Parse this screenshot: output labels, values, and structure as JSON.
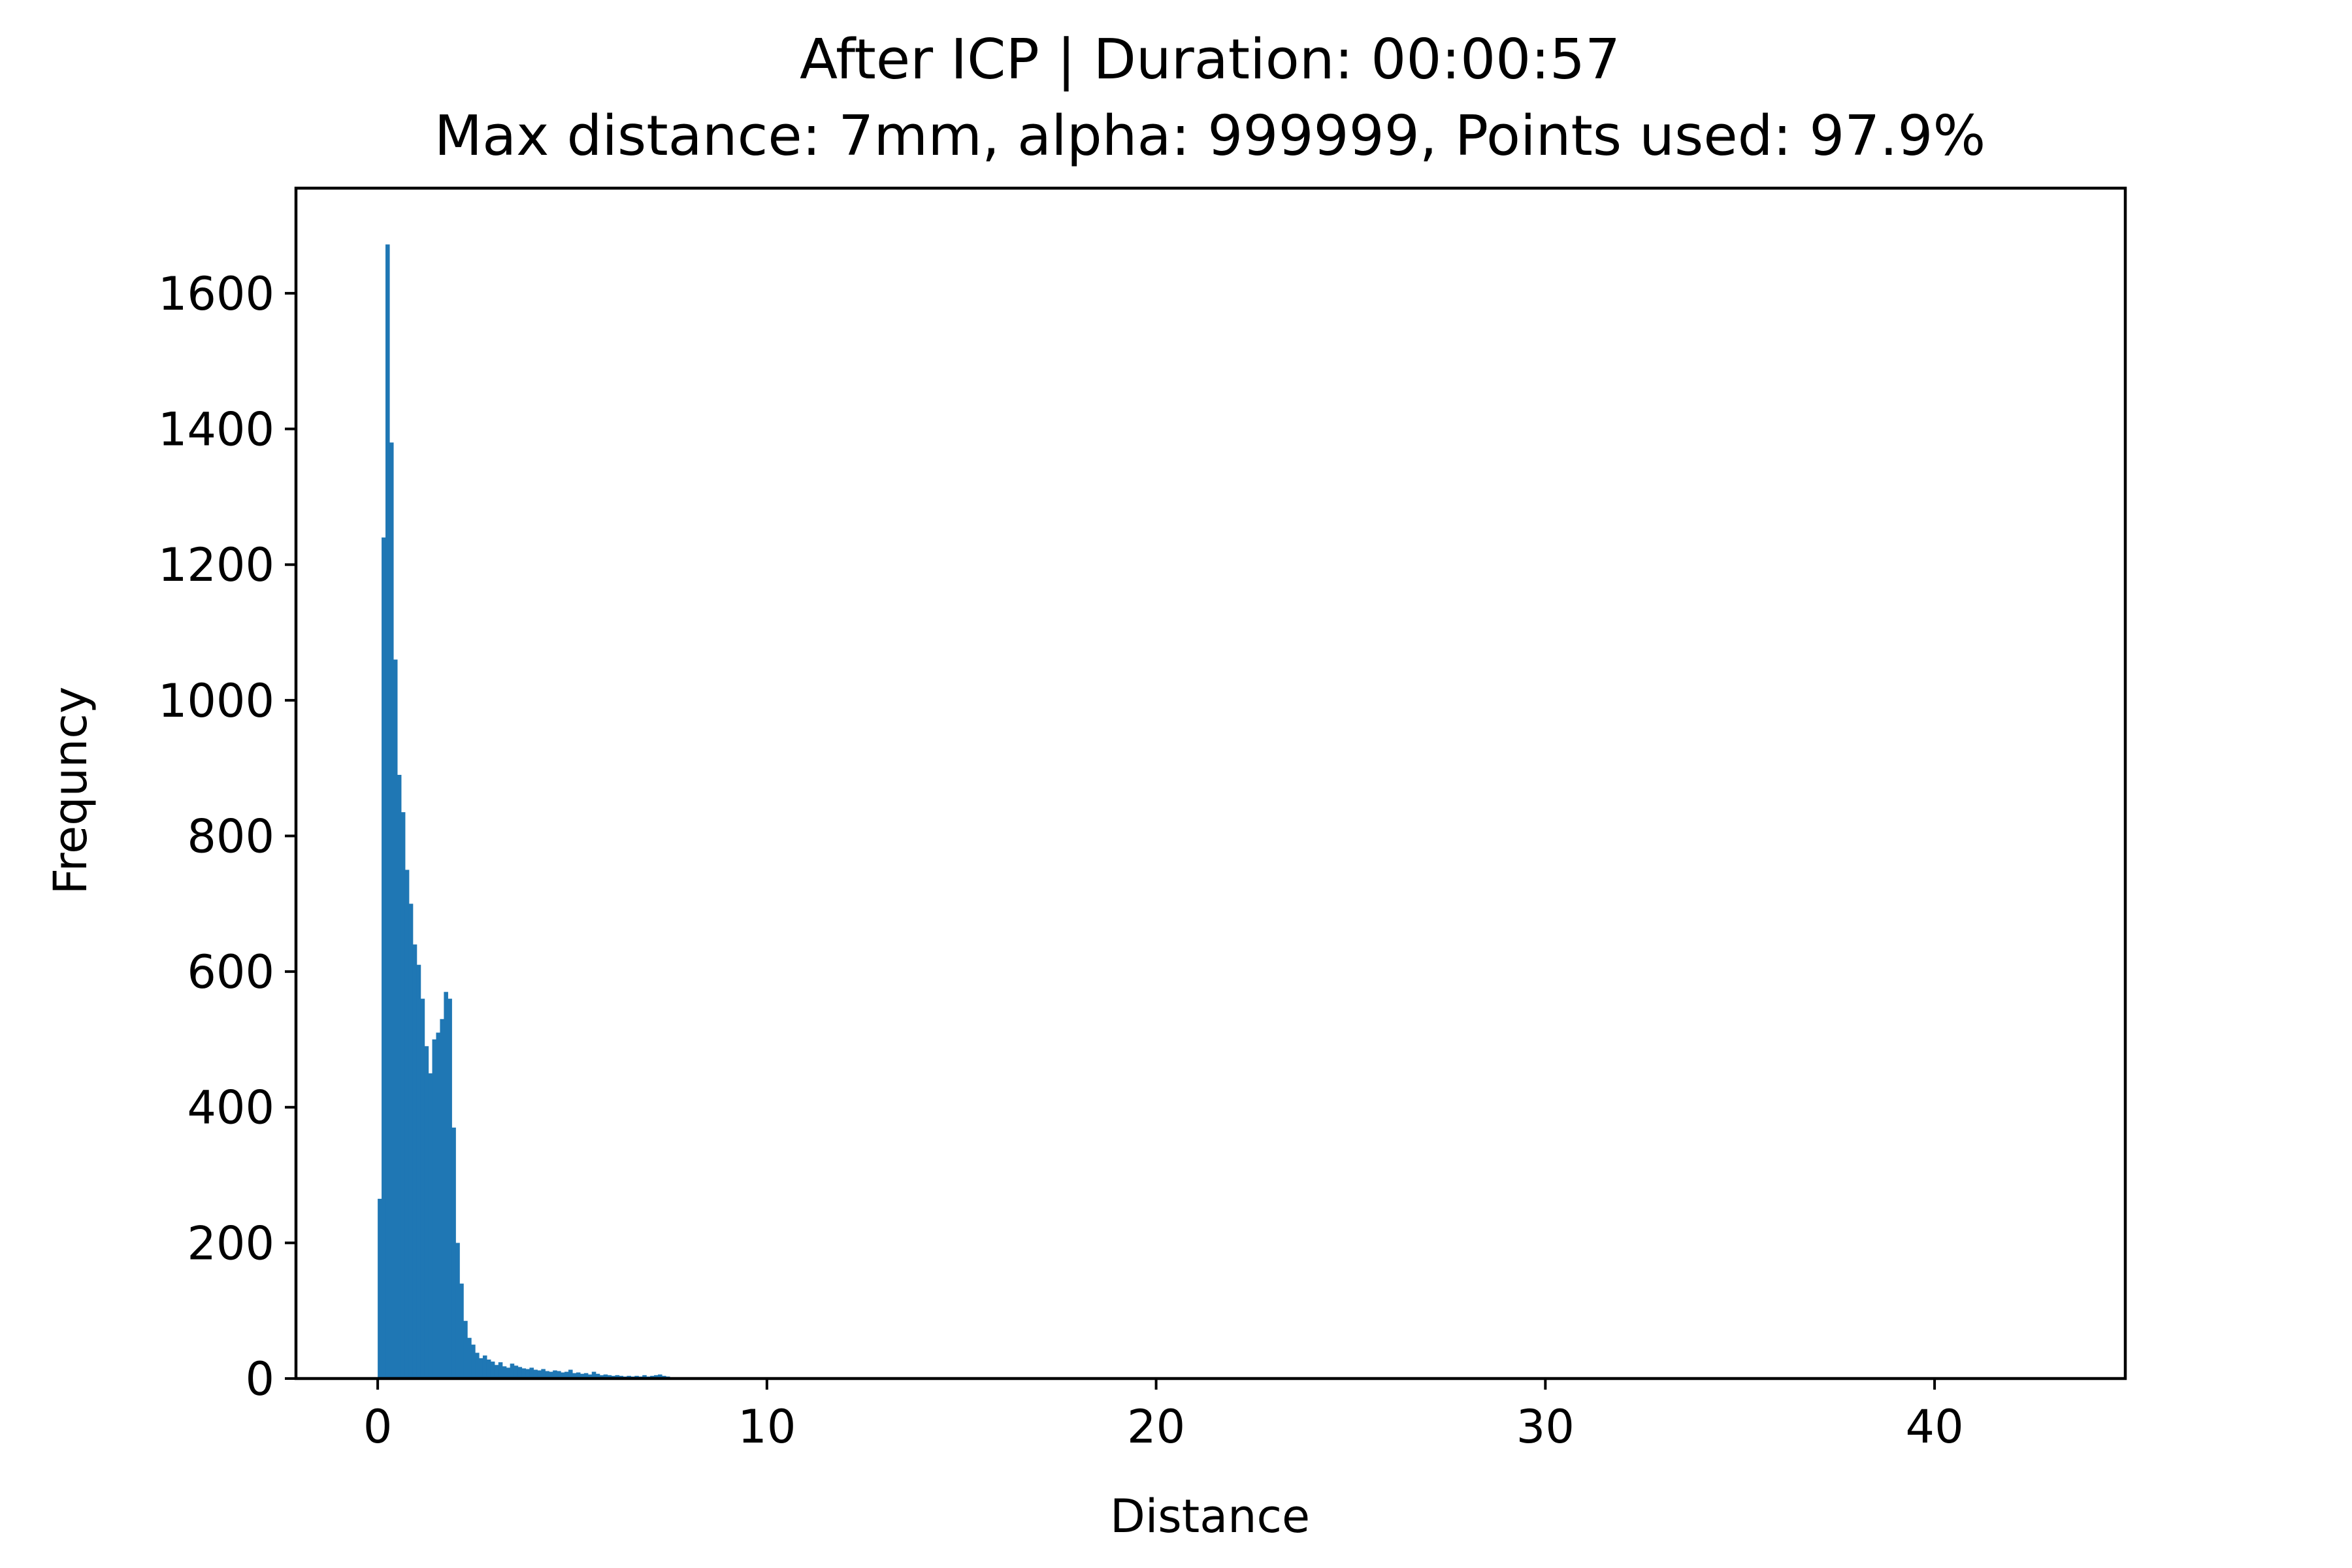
{
  "chart_data": {
    "type": "bar",
    "title": "After ICP | Duration: 00:00:57",
    "subtitle": "Max distance: 7mm, alpha: 999999, Points used: 97.9%",
    "xlabel": "Distance",
    "ylabel": "Frequncy",
    "xlim": [
      -2.1,
      44.9
    ],
    "ylim": [
      0,
      1755
    ],
    "xticks": [
      0,
      10,
      20,
      30,
      40
    ],
    "yticks": [
      0,
      200,
      400,
      600,
      800,
      1000,
      1200,
      1400,
      1600
    ],
    "grid": false,
    "legend": "none",
    "bar_color": "#1f77b4",
    "bin_width": 0.1,
    "bin_starts": [
      0.0,
      0.1,
      0.2,
      0.3,
      0.4,
      0.5,
      0.6,
      0.7,
      0.8,
      0.9,
      1.0,
      1.1,
      1.2,
      1.3,
      1.4,
      1.5,
      1.6,
      1.7,
      1.8,
      1.9,
      2.0,
      2.1,
      2.2,
      2.3,
      2.4,
      2.5,
      2.6,
      2.7,
      2.8,
      2.9,
      3.0,
      3.1,
      3.2,
      3.3,
      3.4,
      3.5,
      3.6,
      3.7,
      3.8,
      3.9,
      4.0,
      4.1,
      4.2,
      4.3,
      4.4,
      4.5,
      4.6,
      4.7,
      4.8,
      4.9,
      5.0,
      5.1,
      5.2,
      5.3,
      5.4,
      5.5,
      5.6,
      5.7,
      5.8,
      5.9,
      6.0,
      6.1,
      6.2,
      6.3,
      6.4,
      6.5,
      6.6,
      6.7,
      6.8,
      6.9,
      7.0,
      7.1,
      7.2,
      7.3,
      7.4
    ],
    "values": [
      265,
      1240,
      1672,
      1380,
      1060,
      890,
      835,
      750,
      700,
      640,
      610,
      560,
      490,
      450,
      500,
      510,
      530,
      570,
      560,
      370,
      200,
      140,
      85,
      60,
      50,
      38,
      30,
      34,
      28,
      25,
      20,
      24,
      18,
      16,
      22,
      19,
      17,
      15,
      14,
      16,
      13,
      12,
      14,
      11,
      10,
      12,
      11,
      9,
      10,
      13,
      8,
      9,
      7,
      8,
      6,
      10,
      7,
      5,
      6,
      5,
      4,
      5,
      4,
      3,
      4,
      3,
      4,
      3,
      5,
      3,
      4,
      5,
      6,
      4,
      3
    ]
  }
}
